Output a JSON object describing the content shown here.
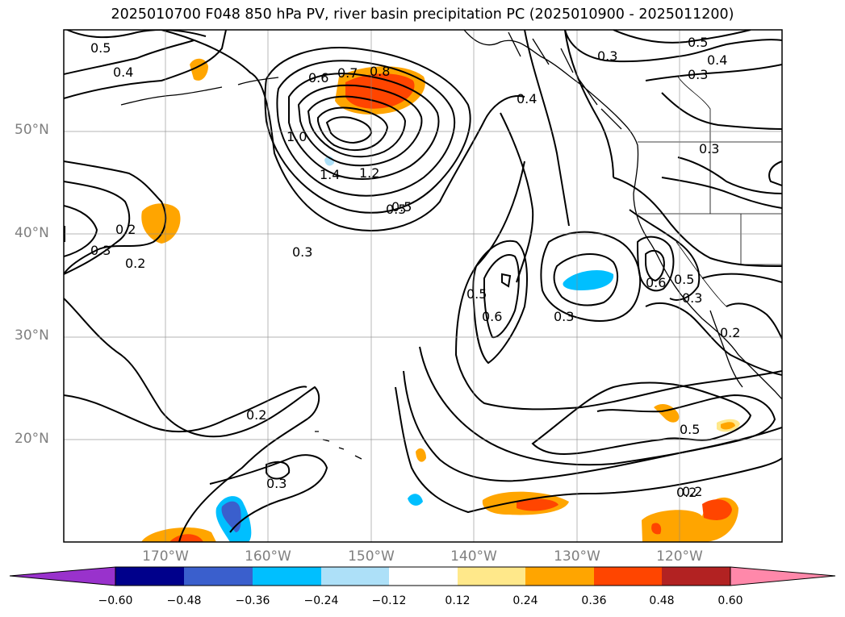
{
  "title": "2025010700 F048 850 hPa PV, river basin precipitation PC (2025010900 - 2025011200)",
  "latitude_labels": [
    "50°N",
    "40°N",
    "30°N",
    "20°N"
  ],
  "longitude_labels": [
    "170°W",
    "160°W",
    "150°W",
    "140°W",
    "130°W",
    "120°W"
  ],
  "contour_labels": [
    "0.5",
    "0.4",
    "0.3",
    "0.2",
    "0.2",
    "0.3",
    "0.2",
    "0.2",
    "0.3",
    "0.6",
    "0.7",
    "0.8",
    "1.0",
    "1.4",
    "1.2",
    "0.5",
    "0.3",
    "0.4",
    "0.5",
    "0.6",
    "0.3",
    "0.3",
    "0.5",
    "0.4",
    "0.3",
    "0.5",
    "0.5",
    "0.6",
    "0.3",
    "0.2",
    "0.5",
    "0.2"
  ],
  "colorbar": {
    "tick_labels": [
      "−0.60",
      "−0.48",
      "−0.36",
      "−0.24",
      "−0.12",
      "0.12",
      "0.24",
      "0.36",
      "0.48",
      "0.60"
    ],
    "colors": [
      "#9932CC",
      "#00008B",
      "#3A5FCD",
      "#00BFFF",
      "#ADE0F8",
      "#FFFFFF",
      "#FFE88A",
      "#FFA500",
      "#FF4500",
      "#B22222",
      "#FF88AA"
    ],
    "extend": "both"
  },
  "map": {
    "lat_range": [
      10,
      60
    ],
    "lon_range": [
      -180,
      -110
    ],
    "grid": true,
    "contour_field": "850 hPa PV",
    "shading_field": "river basin precipitation PC"
  }
}
